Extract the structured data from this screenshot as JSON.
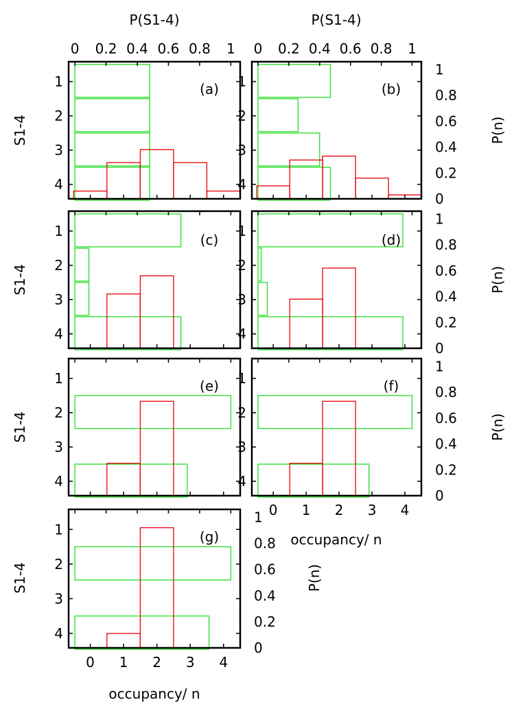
{
  "figure": {
    "top_axis_label": "P(S1-4)",
    "left_axis_label": "S1-4",
    "right_axis_label": "P(n)",
    "bottom_axis_label": "occupancy/ n",
    "colors": {
      "red": "#e8000b",
      "green": "#22dd22"
    }
  },
  "chart_data": [
    {
      "panel": "(a)",
      "type": "bar",
      "red_series": {
        "x": [
          0,
          1,
          2,
          3,
          4
        ],
        "values": [
          0.06,
          0.28,
          0.38,
          0.28,
          0.06
        ]
      },
      "green_series": {
        "states": [
          1,
          2,
          3,
          4
        ],
        "values": [
          0.48,
          0.48,
          0.48,
          0.48
        ]
      }
    },
    {
      "panel": "(b)",
      "type": "bar",
      "red_series": {
        "x": [
          0,
          1,
          2,
          3,
          4
        ],
        "values": [
          0.1,
          0.3,
          0.33,
          0.16,
          0.03
        ]
      },
      "green_series": {
        "states": [
          1,
          2,
          3,
          4
        ],
        "values": [
          0.47,
          0.26,
          0.4,
          0.47
        ]
      }
    },
    {
      "panel": "(c)",
      "type": "bar",
      "red_series": {
        "x": [
          1,
          2
        ],
        "values": [
          0.42,
          0.56
        ]
      },
      "green_series": {
        "states": [
          1,
          2,
          3,
          4
        ],
        "values": [
          0.68,
          0.09,
          0.09,
          0.68
        ]
      }
    },
    {
      "panel": "(d)",
      "type": "bar",
      "red_series": {
        "x": [
          1,
          2
        ],
        "values": [
          0.38,
          0.62
        ]
      },
      "green_series": {
        "states": [
          1,
          2,
          3,
          4
        ],
        "values": [
          0.94,
          0.02,
          0.06,
          0.94
        ]
      }
    },
    {
      "panel": "(e)",
      "type": "bar",
      "red_series": {
        "x": [
          1,
          2
        ],
        "values": [
          0.25,
          0.73
        ]
      },
      "green_series": {
        "states": [
          1,
          2,
          3,
          4
        ],
        "values": [
          0,
          1.0,
          0,
          0.72
        ]
      }
    },
    {
      "panel": "(f)",
      "type": "bar",
      "red_series": {
        "x": [
          1,
          2
        ],
        "values": [
          0.25,
          0.73
        ]
      },
      "green_series": {
        "states": [
          1,
          2,
          3,
          4
        ],
        "values": [
          0,
          1.0,
          0,
          0.72
        ]
      }
    },
    {
      "panel": "(g)",
      "type": "bar",
      "red_series": {
        "x": [
          1,
          2
        ],
        "values": [
          0.11,
          0.92
        ]
      },
      "green_series": {
        "states": [
          1,
          2,
          3,
          4
        ],
        "values": [
          0,
          1.0,
          0,
          0.86
        ]
      }
    }
  ],
  "axes": {
    "occupancy": {
      "range": [
        -0.65,
        4.5
      ],
      "ticks": [
        "0",
        "1",
        "2",
        "3",
        "4"
      ]
    },
    "state": {
      "ticks": [
        "1",
        "2",
        "3",
        "4"
      ]
    },
    "p_state": {
      "range": [
        -0.04,
        1.06
      ],
      "ticks": [
        "0",
        "0.2",
        "0.4",
        "0.6",
        "0.8",
        "1"
      ]
    },
    "p_n": {
      "range": [
        0,
        1.06
      ],
      "ticks": [
        "0",
        "0.2",
        "0.4",
        "0.6",
        "0.8",
        "1"
      ]
    }
  }
}
